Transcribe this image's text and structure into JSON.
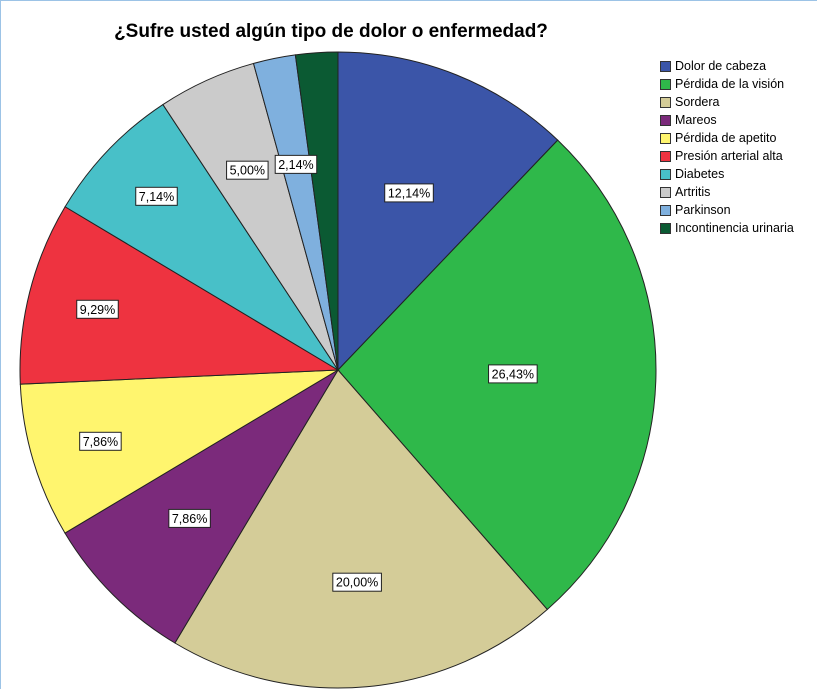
{
  "chart_data": {
    "type": "pie",
    "title": "¿Sufre usted algún tipo de dolor o enfermedad?",
    "categories": [
      "Dolor de cabeza",
      "Pérdida de la visión",
      "Sordera",
      "Mareos",
      "Pérdida de apetito",
      "Presión arterial alta",
      "Diabetes",
      "Artritis",
      "Parkinson",
      "Incontinencia urinaria"
    ],
    "values": [
      12.14,
      26.43,
      20.0,
      7.86,
      7.86,
      9.29,
      7.14,
      5.0,
      2.14,
      2.14
    ],
    "data_labels": [
      "12,14%",
      "26,43%",
      "20,00%",
      "7,86%",
      "7,86%",
      "9,29%",
      "7,14%",
      "5,00%",
      "2,14%",
      ""
    ],
    "colors": [
      "#3b55a8",
      "#2fb84a",
      "#d4cc98",
      "#7b2a7b",
      "#fff56e",
      "#ee3340",
      "#48c0c8",
      "#cbcbcb",
      "#7fb0de",
      "#0b5a33"
    ],
    "legend_position": "right",
    "start_angle": "12 o'clock",
    "direction": "clockwise"
  }
}
